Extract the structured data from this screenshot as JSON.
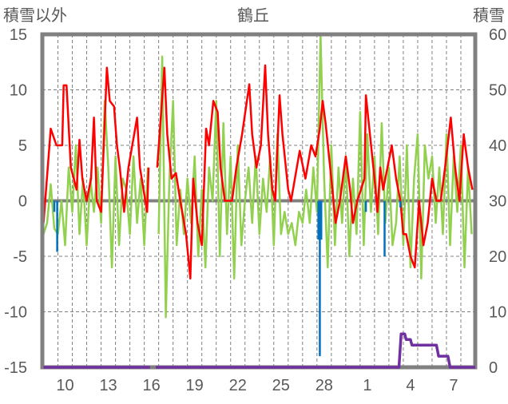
{
  "chart_data": {
    "type": "line",
    "title": "鶴丘",
    "ylabel_left": "積雪以外",
    "ylabel_right": "積雪",
    "ylim_left": [
      -15,
      15
    ],
    "ylim_right": [
      0,
      60
    ],
    "yticks_left": [
      "15",
      "10",
      "5",
      "0",
      "-5",
      "-10",
      "-15"
    ],
    "yticks_right": [
      "60",
      "50",
      "40",
      "30",
      "20",
      "10",
      "0"
    ],
    "xlim_days": [
      0,
      30
    ],
    "xtick_labels": [
      {
        "label": "10",
        "day_index": 1
      },
      {
        "label": "13",
        "day_index": 4
      },
      {
        "label": "16",
        "day_index": 7
      },
      {
        "label": "19",
        "day_index": 10
      },
      {
        "label": "22",
        "day_index": 13
      },
      {
        "label": "25",
        "day_index": 16
      },
      {
        "label": "28",
        "day_index": 19
      },
      {
        "label": "1",
        "day_index": 22
      },
      {
        "label": "4",
        "day_index": 25
      },
      {
        "label": "7",
        "day_index": 28
      }
    ],
    "grid": {
      "horizontal": true,
      "vertical": true,
      "style": "dashed"
    },
    "colors": {
      "red": "#ff0000",
      "green": "#92d050",
      "blue": "#0070c0",
      "purple": "#7030a0",
      "frame": "#808080",
      "grid": "#808080"
    },
    "series": [
      {
        "name": "",
        "color_key": "red",
        "axis": "left",
        "points": [
          [
            0,
            -2
          ],
          [
            0.5,
            6.5
          ],
          [
            0.9,
            5
          ],
          [
            1.3,
            5
          ],
          [
            1.4,
            10.4
          ],
          [
            1.6,
            10.4
          ],
          [
            1.9,
            3
          ],
          [
            2.3,
            1
          ],
          [
            2.5,
            5.5
          ],
          [
            2.7,
            2
          ],
          [
            3,
            0
          ],
          [
            3.3,
            2
          ],
          [
            3.5,
            7.5
          ],
          [
            3.7,
            0
          ],
          [
            4,
            -1
          ],
          [
            4.4,
            12
          ],
          [
            4.6,
            9
          ],
          [
            4.9,
            8.5
          ],
          [
            5.1,
            5
          ],
          [
            5.3,
            3
          ],
          [
            5.6,
            -1
          ],
          [
            5.9,
            3
          ],
          [
            6.5,
            7.5
          ],
          [
            6.7,
            3
          ],
          [
            7.2,
            -1
          ],
          [
            7.3,
            3
          ],
          null,
          [
            7.9,
            3
          ],
          [
            8.4,
            12
          ],
          [
            8.6,
            6
          ],
          [
            8.9,
            2
          ],
          [
            9.2,
            2.5
          ],
          [
            9.5,
            0
          ],
          [
            9.9,
            -3
          ],
          [
            10.2,
            -7
          ],
          [
            10.4,
            2
          ],
          [
            10.7,
            -2
          ],
          [
            11,
            -4
          ],
          [
            11.3,
            6.5
          ],
          [
            11.5,
            5
          ],
          [
            11.8,
            9
          ],
          [
            12.1,
            8
          ],
          [
            12.3,
            3
          ],
          [
            12.6,
            0
          ],
          [
            13.1,
            0
          ],
          [
            13.4,
            3
          ],
          [
            13.8,
            6
          ],
          [
            14.3,
            10.5
          ],
          [
            14.5,
            6
          ],
          [
            14.8,
            3
          ],
          [
            15.1,
            5
          ],
          [
            15.4,
            12.2
          ],
          [
            15.6,
            6
          ],
          [
            15.9,
            1
          ],
          [
            16.1,
            0
          ],
          [
            16.4,
            9.5
          ],
          [
            16.6,
            6
          ],
          [
            17,
            1
          ],
          [
            17.2,
            0
          ],
          [
            17.4,
            1.5
          ],
          [
            17.8,
            4.5
          ],
          [
            18.2,
            2
          ],
          [
            18.6,
            5
          ],
          [
            18.9,
            4
          ],
          [
            19.2,
            6.5
          ],
          [
            19.4,
            9
          ],
          [
            19.6,
            7
          ],
          [
            20,
            2
          ],
          [
            20.3,
            -2
          ],
          [
            20.6,
            0
          ],
          [
            21,
            4
          ],
          [
            21.3,
            1
          ],
          [
            21.5,
            -2
          ],
          [
            21.8,
            0
          ],
          [
            22.3,
            2
          ],
          [
            22.4,
            9.5
          ],
          [
            22.6,
            7
          ],
          [
            23,
            2
          ],
          [
            23.2,
            -1
          ],
          [
            23.4,
            3
          ],
          [
            23.6,
            1
          ],
          [
            24.2,
            5
          ],
          [
            24.5,
            2
          ],
          [
            24.8,
            0
          ],
          [
            25,
            -3
          ],
          [
            25.2,
            -3
          ],
          [
            25.5,
            -5
          ],
          [
            25.8,
            -6
          ],
          [
            26.1,
            0
          ],
          [
            26.4,
            -4
          ],
          [
            26.7,
            -2
          ],
          [
            27,
            2
          ],
          [
            27.3,
            0
          ],
          [
            27.6,
            0
          ],
          [
            27.9,
            3
          ],
          [
            28.3,
            7.5
          ],
          [
            28.6,
            3
          ],
          [
            28.9,
            0
          ],
          [
            29.2,
            6
          ],
          [
            29.5,
            3
          ],
          [
            29.8,
            1
          ]
        ]
      },
      {
        "name": "",
        "color_key": "green",
        "axis": "left",
        "step_days": 0.25,
        "values": [
          -3,
          -2,
          1.5,
          -2.5,
          -3,
          0,
          -4,
          3,
          -1,
          5,
          -3,
          2,
          -4,
          2,
          -1,
          3,
          -2,
          9,
          3,
          -6,
          4,
          -4,
          2,
          1,
          -3,
          4,
          -2,
          2,
          -4,
          3,
          null,
          null,
          -3,
          13,
          -10.5,
          2,
          9,
          -4,
          1,
          -3,
          2,
          -2,
          4,
          -5,
          1,
          -6,
          3,
          0,
          9,
          -5,
          7,
          -3,
          4,
          -7,
          5,
          -4,
          0,
          3,
          -2,
          4,
          -3,
          2,
          -1,
          4,
          -4,
          6,
          -3,
          -1,
          -3,
          -2,
          -4,
          -1,
          -2,
          1,
          -2,
          3,
          -1,
          15,
          2,
          -6,
          5,
          -4,
          3,
          -2,
          4,
          -5,
          2,
          -3,
          8,
          -4,
          6,
          -1,
          4,
          -3,
          7,
          -2,
          3,
          -4,
          -2,
          4,
          -4,
          5,
          -6,
          2,
          6,
          -7,
          5,
          2,
          4,
          -2,
          3,
          -3,
          6,
          -4,
          4,
          -1,
          5,
          -6,
          3,
          -3
        ]
      },
      {
        "name": "",
        "color_key": "blue",
        "axis": "left",
        "type": "bar",
        "points": [
          [
            0.75,
            -1
          ],
          [
            0.95,
            -4.6
          ],
          [
            19.1,
            -3.5
          ],
          [
            19.2,
            -14
          ],
          [
            19.3,
            -3.5
          ],
          [
            22.4,
            -1
          ],
          [
            23.7,
            -5
          ],
          [
            24.8,
            -0.6
          ]
        ]
      },
      {
        "name": "",
        "color_key": "purple",
        "axis": "right",
        "points": [
          [
            0,
            0
          ],
          [
            7.4,
            0
          ],
          null,
          [
            7.8,
            0
          ],
          [
            24.7,
            0
          ],
          [
            24.85,
            6
          ],
          [
            25.1,
            6
          ],
          [
            25.2,
            5
          ],
          [
            25.5,
            5
          ],
          [
            25.6,
            4
          ],
          [
            27.3,
            4
          ],
          [
            27.45,
            2
          ],
          [
            28.1,
            2
          ],
          [
            28.25,
            0
          ],
          [
            30,
            0
          ]
        ]
      }
    ]
  }
}
